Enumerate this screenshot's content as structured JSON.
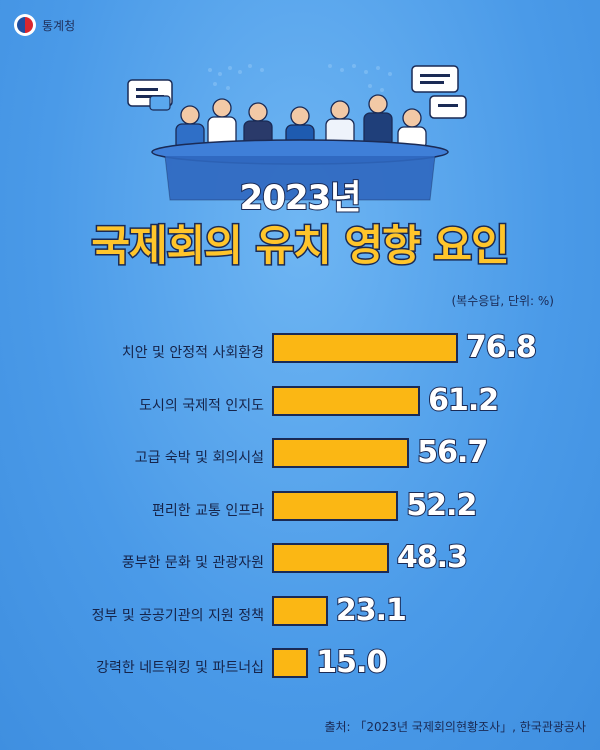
{
  "brand": {
    "name": "통계청",
    "logo_icon": "government-emblem-icon"
  },
  "header": {
    "year_title": "2023년",
    "main_title": "국제회의 유치 영향 요인"
  },
  "note": "(복수응답, 단위: %)",
  "source": "출처: 「2023년 국제회의현황조사」, 한국관광공사",
  "colors": {
    "background": "#4a9ae8",
    "bar": "#fbb714",
    "outline": "#1a2a55",
    "title": "#ffc52b"
  },
  "chart_data": {
    "type": "bar",
    "orientation": "horizontal",
    "title": "국제회의 유치 영향 요인",
    "categories": [
      "치안 및 안정적 사회환경",
      "도시의 국제적 인지도",
      "고급 숙박 및 회의시설",
      "편리한 교통 인프라",
      "풍부한 문화 및 관광자원",
      "정부 및 공공기관의 지원 정책",
      "강력한 네트워킹 및 파트너십"
    ],
    "values": [
      76.8,
      61.2,
      56.7,
      52.2,
      48.3,
      23.1,
      15.0
    ],
    "value_labels": [
      "76.8",
      "61.2",
      "56.7",
      "52.2",
      "48.3",
      "23.1",
      "15.0"
    ],
    "xlim": [
      0,
      100
    ],
    "grid": false,
    "legend": "none"
  }
}
